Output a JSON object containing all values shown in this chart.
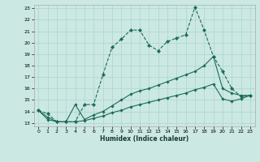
{
  "xlabel": "Humidex (Indice chaleur)",
  "background_color": "#cce8e3",
  "grid_color": "#aad4ce",
  "line_color": "#1a6b58",
  "xlim_min": -0.5,
  "xlim_max": 23.5,
  "ylim_min": 12.7,
  "ylim_max": 23.3,
  "x": [
    0,
    1,
    2,
    3,
    4,
    5,
    6,
    7,
    8,
    9,
    10,
    11,
    12,
    13,
    14,
    15,
    16,
    17,
    18,
    19,
    20,
    21,
    22,
    23
  ],
  "line1_y": [
    14.1,
    13.8,
    13.1,
    13.1,
    13.1,
    14.6,
    14.6,
    17.2,
    19.6,
    20.3,
    21.1,
    21.1,
    19.8,
    19.3,
    20.1,
    20.4,
    20.7,
    23.1,
    21.1,
    18.8,
    17.5,
    16.0,
    15.3,
    15.4
  ],
  "line2_y": [
    14.1,
    13.5,
    13.1,
    13.1,
    14.6,
    13.3,
    13.7,
    14.0,
    14.5,
    15.0,
    15.5,
    15.8,
    16.0,
    16.3,
    16.6,
    16.9,
    17.2,
    17.5,
    18.0,
    18.8,
    16.0,
    15.6,
    15.4,
    15.4
  ],
  "line3_y": [
    14.1,
    13.3,
    13.1,
    13.1,
    13.1,
    13.2,
    13.4,
    13.6,
    13.9,
    14.1,
    14.4,
    14.6,
    14.8,
    15.0,
    15.2,
    15.4,
    15.6,
    15.9,
    16.1,
    16.4,
    15.1,
    14.9,
    15.1,
    15.4
  ]
}
